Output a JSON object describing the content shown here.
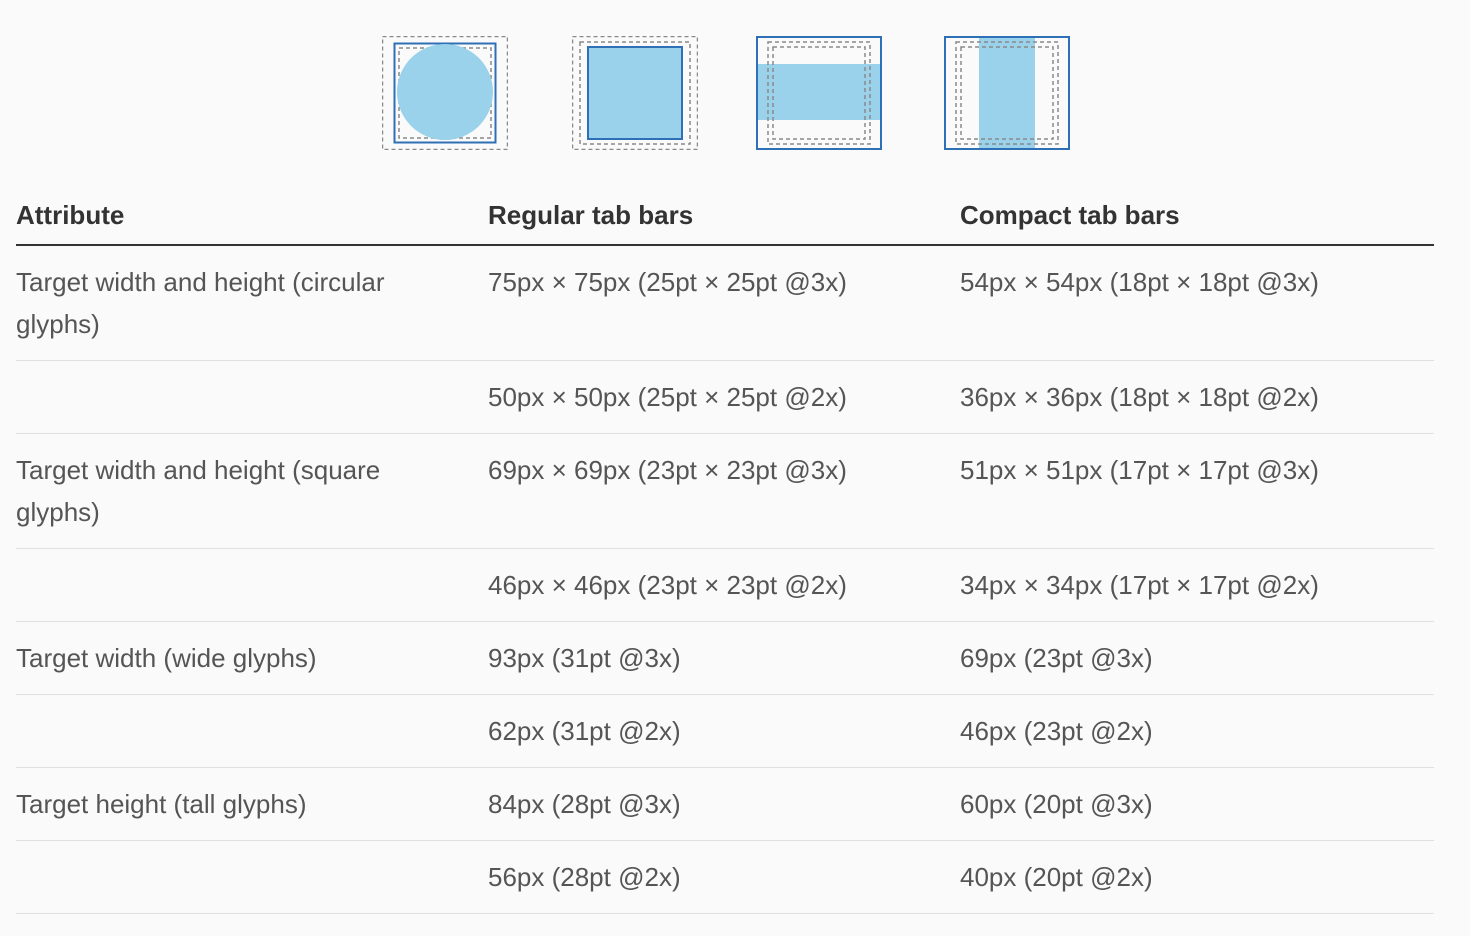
{
  "colors": {
    "fill": "#99d2ea",
    "frame": "#2f6fb5",
    "dash": "#8a8a8a",
    "header_text": "#333333",
    "body_text": "#555555",
    "divider": "#e0e0e0"
  },
  "illustrations": [
    {
      "name": "circular-glyph-diagram",
      "icon": "circle-target-icon"
    },
    {
      "name": "square-glyph-diagram",
      "icon": "square-target-icon"
    },
    {
      "name": "wide-glyph-diagram",
      "icon": "wide-target-icon"
    },
    {
      "name": "tall-glyph-diagram",
      "icon": "tall-target-icon"
    }
  ],
  "table": {
    "headers": [
      "Attribute",
      "Regular tab bars",
      "Compact tab bars"
    ],
    "rows": [
      [
        "Target width and height (circular glyphs)",
        "75px × 75px (25pt × 25pt @3x)",
        "54px × 54px (18pt × 18pt @3x)"
      ],
      [
        "",
        "50px × 50px (25pt × 25pt @2x)",
        "36px × 36px (18pt × 18pt @2x)"
      ],
      [
        "Target width and height (square glyphs)",
        "69px × 69px (23pt × 23pt @3x)",
        "51px × 51px (17pt × 17pt @3x)"
      ],
      [
        "",
        "46px × 46px (23pt × 23pt @2x)",
        "34px × 34px (17pt × 17pt @2x)"
      ],
      [
        "Target width (wide glyphs)",
        "93px (31pt @3x)",
        "69px (23pt @3x)"
      ],
      [
        "",
        "62px (31pt @2x)",
        "46px (23pt @2x)"
      ],
      [
        "Target height (tall glyphs)",
        "84px (28pt @3x)",
        "60px (20pt @3x)"
      ],
      [
        "",
        "56px (28pt @2x)",
        "40px (20pt @2x)"
      ]
    ]
  }
}
